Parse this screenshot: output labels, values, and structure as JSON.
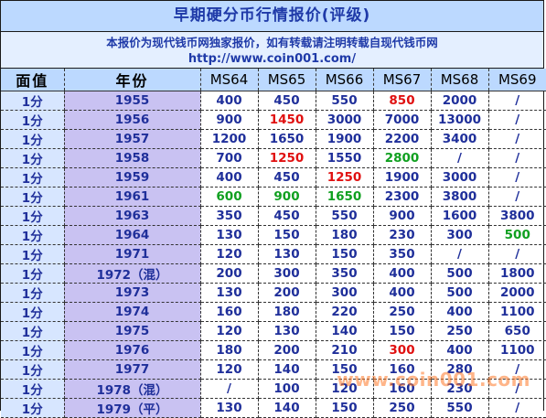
{
  "title": "早期硬分币行情报价(评级)",
  "notice": {
    "line1": "本报价为现代钱币网独家报价，如有转载请注明转载自现代钱币网",
    "line2": "http://www.coin001.com/"
  },
  "table": {
    "headers": [
      "面值",
      "年份",
      "MS64",
      "MS65",
      "MS66",
      "MS67",
      "MS68",
      "MS69"
    ],
    "rows": [
      {
        "denom": "1分",
        "year": "1955",
        "values": [
          "400",
          "450",
          "550",
          "850",
          "2000",
          "/"
        ],
        "colors": [
          "",
          "",
          "",
          "red",
          "",
          ""
        ]
      },
      {
        "denom": "1分",
        "year": "1956",
        "values": [
          "900",
          "1450",
          "3000",
          "7000",
          "13000",
          "/"
        ],
        "colors": [
          "",
          "red",
          "",
          "",
          "",
          ""
        ]
      },
      {
        "denom": "1分",
        "year": "1957",
        "values": [
          "1200",
          "1650",
          "1900",
          "2200",
          "3400",
          "/"
        ],
        "colors": [
          "",
          "",
          "",
          "",
          "",
          ""
        ]
      },
      {
        "denom": "1分",
        "year": "1958",
        "values": [
          "700",
          "1250",
          "1550",
          "2800",
          "/",
          "/"
        ],
        "colors": [
          "",
          "red",
          "",
          "green",
          "",
          ""
        ]
      },
      {
        "denom": "1分",
        "year": "1959",
        "values": [
          "400",
          "450",
          "1250",
          "1900",
          "3000",
          "/"
        ],
        "colors": [
          "",
          "",
          "red",
          "",
          "",
          ""
        ]
      },
      {
        "denom": "1分",
        "year": "1961",
        "values": [
          "600",
          "900",
          "1650",
          "2300",
          "3800",
          "/"
        ],
        "colors": [
          "green",
          "green",
          "green",
          "",
          "",
          ""
        ]
      },
      {
        "denom": "1分",
        "year": "1963",
        "values": [
          "350",
          "450",
          "550",
          "900",
          "1600",
          "3800"
        ],
        "colors": [
          "",
          "",
          "",
          "",
          "",
          ""
        ]
      },
      {
        "denom": "1分",
        "year": "1964",
        "values": [
          "130",
          "150",
          "180",
          "230",
          "300",
          "500"
        ],
        "colors": [
          "",
          "",
          "",
          "",
          "",
          "green"
        ]
      },
      {
        "denom": "1分",
        "year": "1971",
        "values": [
          "120",
          "130",
          "150",
          "350",
          "/",
          "/"
        ],
        "colors": [
          "",
          "",
          "",
          "",
          "",
          ""
        ]
      },
      {
        "denom": "1分",
        "year": "1972（混）",
        "values": [
          "200",
          "300",
          "350",
          "400",
          "500",
          "1800"
        ],
        "colors": [
          "",
          "",
          "",
          "",
          "",
          ""
        ]
      },
      {
        "denom": "1分",
        "year": "1973",
        "values": [
          "130",
          "200",
          "300",
          "400",
          "500",
          "2000"
        ],
        "colors": [
          "",
          "",
          "",
          "",
          "",
          ""
        ]
      },
      {
        "denom": "1分",
        "year": "1974",
        "values": [
          "160",
          "180",
          "220",
          "250",
          "400",
          "1100"
        ],
        "colors": [
          "",
          "",
          "",
          "",
          "",
          ""
        ]
      },
      {
        "denom": "1分",
        "year": "1975",
        "values": [
          "120",
          "130",
          "140",
          "150",
          "250",
          "650"
        ],
        "colors": [
          "",
          "",
          "",
          "",
          "",
          ""
        ]
      },
      {
        "denom": "1分",
        "year": "1976",
        "values": [
          "180",
          "200",
          "210",
          "300",
          "400",
          "1100"
        ],
        "colors": [
          "",
          "",
          "",
          "red",
          "",
          ""
        ]
      },
      {
        "denom": "1分",
        "year": "1977",
        "values": [
          "120",
          "140",
          "150",
          "160",
          "280",
          "/"
        ],
        "colors": [
          "",
          "",
          "",
          "",
          "",
          ""
        ]
      },
      {
        "denom": "1分",
        "year": "1978（混）",
        "values": [
          "/",
          "100",
          "120",
          "160",
          "230",
          "/"
        ],
        "colors": [
          "",
          "",
          "",
          "",
          "",
          ""
        ]
      },
      {
        "denom": "1分",
        "year": "1979（平）",
        "values": [
          "130",
          "140",
          "150",
          "250",
          "550",
          "/"
        ],
        "colors": [
          "",
          "",
          "",
          "",
          "",
          ""
        ]
      }
    ]
  },
  "watermark": "www.coin001.com",
  "colors": {
    "header_bg": "#bcd9ff",
    "title_text": "#1f3aa8",
    "red": "#e01010",
    "green": "#10a020"
  }
}
